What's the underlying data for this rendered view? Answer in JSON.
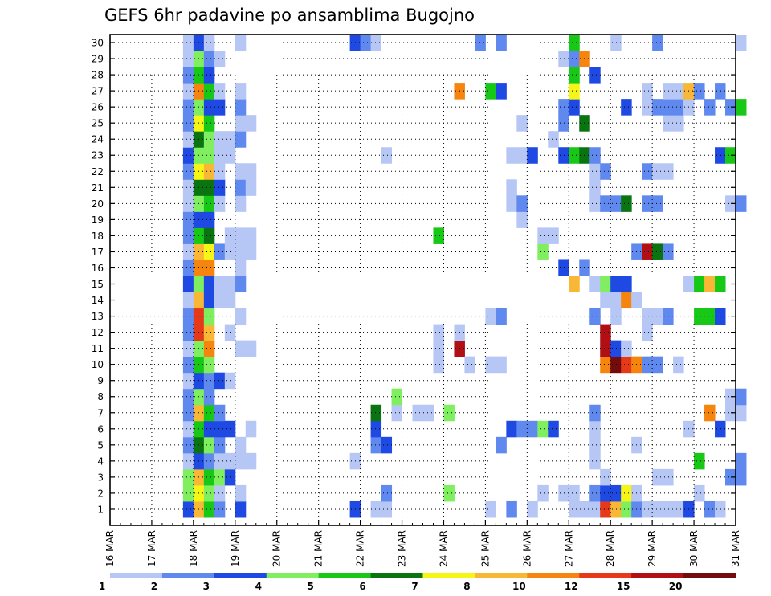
{
  "chart_data": {
    "type": "heatmap",
    "title": "GEFS 6hr padavine po ansamblima Bugojno",
    "x_ticks": [
      "16 MAR",
      "17 MAR",
      "18 MAR",
      "19 MAR",
      "20 MAR",
      "21 MAR",
      "22 MAR",
      "23 MAR",
      "24 MAR",
      "25 MAR",
      "26 MAR",
      "27 MAR",
      "28 MAR",
      "29 MAR",
      "30 MAR",
      "31 MAR"
    ],
    "x_range": [
      "16 MAR",
      "31 MAR"
    ],
    "y_ticks": [
      "1",
      "2",
      "3",
      "4",
      "5",
      "6",
      "7",
      "8",
      "9",
      "10",
      "11",
      "12",
      "13",
      "14",
      "15",
      "16",
      "17",
      "18",
      "19",
      "20",
      "21",
      "22",
      "23",
      "24",
      "25",
      "26",
      "27",
      "28",
      "29",
      "30"
    ],
    "y_range": [
      1,
      30
    ],
    "grid": true,
    "colorbar": {
      "position": "bottom",
      "labels": [
        "1",
        "2",
        "3",
        "4",
        "5",
        "6",
        "7",
        "8",
        "10",
        "12",
        "15",
        "20"
      ],
      "colors": [
        "#b7c7f5",
        "#6089f0",
        "#1f49e3",
        "#7fef60",
        "#18c817",
        "#0a7410",
        "#f5f516",
        "#f9b736",
        "#f5850f",
        "#e5391a",
        "#b10f14",
        "#740b0c"
      ]
    },
    "cells": [
      [
        7,
        0,
        3
      ],
      [
        7,
        1,
        4
      ],
      [
        7,
        2,
        4
      ],
      [
        7,
        3,
        1
      ],
      [
        7,
        4,
        2
      ],
      [
        7,
        5,
        1
      ],
      [
        7,
        6,
        2
      ],
      [
        7,
        7,
        2
      ],
      [
        7,
        8,
        1
      ],
      [
        7,
        9,
        2
      ],
      [
        7,
        10,
        1
      ],
      [
        7,
        11,
        2
      ],
      [
        7,
        12,
        2
      ],
      [
        7,
        13,
        1
      ],
      [
        7,
        14,
        3
      ],
      [
        7,
        15,
        2
      ],
      [
        7,
        16,
        1
      ],
      [
        7,
        17,
        2
      ],
      [
        7,
        18,
        2
      ],
      [
        7,
        19,
        1
      ],
      [
        7,
        20,
        1
      ],
      [
        7,
        21,
        2
      ],
      [
        7,
        22,
        3
      ],
      [
        7,
        23,
        1
      ],
      [
        7,
        24,
        2
      ],
      [
        7,
        25,
        2
      ],
      [
        7,
        26,
        1
      ],
      [
        7,
        27,
        2
      ],
      [
        7,
        28,
        1
      ],
      [
        7,
        29,
        1
      ],
      [
        8,
        0,
        8
      ],
      [
        8,
        1,
        7
      ],
      [
        8,
        2,
        8
      ],
      [
        8,
        3,
        3
      ],
      [
        8,
        4,
        6
      ],
      [
        8,
        5,
        5
      ],
      [
        8,
        6,
        8
      ],
      [
        8,
        7,
        4
      ],
      [
        8,
        8,
        3
      ],
      [
        8,
        9,
        5
      ],
      [
        8,
        10,
        4
      ],
      [
        8,
        11,
        12
      ],
      [
        8,
        12,
        12
      ],
      [
        8,
        13,
        8
      ],
      [
        8,
        14,
        4
      ],
      [
        8,
        15,
        10
      ],
      [
        8,
        16,
        8
      ],
      [
        8,
        17,
        5
      ],
      [
        8,
        18,
        3
      ],
      [
        8,
        19,
        4
      ],
      [
        8,
        20,
        6
      ],
      [
        8,
        21,
        7
      ],
      [
        8,
        22,
        4
      ],
      [
        8,
        23,
        6
      ],
      [
        8,
        24,
        7
      ],
      [
        8,
        25,
        4
      ],
      [
        8,
        26,
        10
      ],
      [
        8,
        27,
        5
      ],
      [
        8,
        28,
        4
      ],
      [
        8,
        29,
        3
      ],
      [
        9,
        0,
        5
      ],
      [
        9,
        1,
        4
      ],
      [
        9,
        2,
        5
      ],
      [
        9,
        3,
        2
      ],
      [
        9,
        4,
        4
      ],
      [
        9,
        5,
        3
      ],
      [
        9,
        6,
        5
      ],
      [
        9,
        7,
        2
      ],
      [
        9,
        8,
        2
      ],
      [
        9,
        9,
        4
      ],
      [
        9,
        10,
        10
      ],
      [
        9,
        11,
        8
      ],
      [
        9,
        12,
        4
      ],
      [
        9,
        13,
        3
      ],
      [
        9,
        14,
        3
      ],
      [
        9,
        15,
        10
      ],
      [
        9,
        16,
        7
      ],
      [
        9,
        17,
        6
      ],
      [
        9,
        18,
        3
      ],
      [
        9,
        19,
        5
      ],
      [
        9,
        20,
        6
      ],
      [
        9,
        21,
        8
      ],
      [
        9,
        22,
        4
      ],
      [
        9,
        23,
        4
      ],
      [
        9,
        24,
        5
      ],
      [
        9,
        25,
        3
      ],
      [
        9,
        26,
        5
      ],
      [
        9,
        27,
        3
      ],
      [
        9,
        28,
        2
      ],
      [
        9,
        29,
        1
      ],
      [
        10,
        0,
        2
      ],
      [
        10,
        1,
        1
      ],
      [
        10,
        2,
        4
      ],
      [
        10,
        3,
        1
      ],
      [
        10,
        4,
        2
      ],
      [
        10,
        5,
        3
      ],
      [
        10,
        6,
        2
      ],
      [
        10,
        8,
        3
      ],
      [
        10,
        13,
        1
      ],
      [
        10,
        14,
        1
      ],
      [
        10,
        16,
        2
      ],
      [
        10,
        19,
        1
      ],
      [
        10,
        20,
        3
      ],
      [
        10,
        21,
        1
      ],
      [
        10,
        22,
        1
      ],
      [
        10,
        23,
        1
      ],
      [
        10,
        25,
        3
      ],
      [
        10,
        26,
        1
      ],
      [
        10,
        28,
        1
      ],
      [
        11,
        2,
        3
      ],
      [
        11,
        3,
        1
      ],
      [
        11,
        5,
        3
      ],
      [
        11,
        8,
        1
      ],
      [
        11,
        11,
        1
      ],
      [
        11,
        13,
        1
      ],
      [
        11,
        14,
        1
      ],
      [
        11,
        16,
        1
      ],
      [
        11,
        17,
        1
      ],
      [
        11,
        22,
        1
      ],
      [
        11,
        23,
        1
      ],
      [
        12,
        0,
        3
      ],
      [
        12,
        1,
        1
      ],
      [
        12,
        3,
        1
      ],
      [
        12,
        4,
        1
      ],
      [
        12,
        10,
        1
      ],
      [
        12,
        12,
        1
      ],
      [
        12,
        14,
        2
      ],
      [
        12,
        15,
        1
      ],
      [
        12,
        16,
        1
      ],
      [
        12,
        17,
        1
      ],
      [
        12,
        19,
        1
      ],
      [
        12,
        20,
        2
      ],
      [
        12,
        21,
        1
      ],
      [
        12,
        23,
        2
      ],
      [
        12,
        24,
        1
      ],
      [
        12,
        25,
        2
      ],
      [
        12,
        26,
        1
      ],
      [
        12,
        29,
        1
      ],
      [
        13,
        3,
        1
      ],
      [
        13,
        5,
        1
      ],
      [
        13,
        10,
        1
      ],
      [
        13,
        16,
        1
      ],
      [
        13,
        17,
        1
      ],
      [
        13,
        20,
        1
      ],
      [
        13,
        21,
        1
      ],
      [
        13,
        24,
        1
      ],
      [
        23,
        0,
        3
      ],
      [
        23,
        3,
        1
      ],
      [
        23,
        29,
        3
      ],
      [
        24,
        29,
        2
      ],
      [
        25,
        0,
        1
      ],
      [
        25,
        4,
        2
      ],
      [
        25,
        5,
        3
      ],
      [
        25,
        6,
        6
      ],
      [
        25,
        29,
        1
      ],
      [
        26,
        0,
        1
      ],
      [
        26,
        1,
        2
      ],
      [
        26,
        4,
        3
      ],
      [
        26,
        22,
        1
      ],
      [
        27,
        6,
        1
      ],
      [
        27,
        7,
        4
      ],
      [
        29,
        6,
        1
      ],
      [
        30,
        6,
        1
      ],
      [
        31,
        9,
        1
      ],
      [
        31,
        10,
        1
      ],
      [
        31,
        11,
        1
      ],
      [
        31,
        17,
        5
      ],
      [
        32,
        1,
        4
      ],
      [
        32,
        6,
        4
      ],
      [
        33,
        10,
        15
      ],
      [
        33,
        11,
        1
      ],
      [
        33,
        26,
        10
      ],
      [
        34,
        9,
        1
      ],
      [
        35,
        29,
        2
      ],
      [
        36,
        0,
        1
      ],
      [
        36,
        9,
        1
      ],
      [
        36,
        12,
        1
      ],
      [
        36,
        26,
        5
      ],
      [
        37,
        4,
        2
      ],
      [
        37,
        9,
        1
      ],
      [
        37,
        12,
        2
      ],
      [
        37,
        26,
        3
      ],
      [
        37,
        29,
        2
      ],
      [
        38,
        0,
        2
      ],
      [
        38,
        5,
        3
      ],
      [
        38,
        19,
        1
      ],
      [
        38,
        20,
        1
      ],
      [
        38,
        22,
        1
      ],
      [
        39,
        5,
        2
      ],
      [
        39,
        18,
        1
      ],
      [
        39,
        19,
        2
      ],
      [
        39,
        22,
        1
      ],
      [
        39,
        24,
        1
      ],
      [
        40,
        0,
        1
      ],
      [
        40,
        5,
        2
      ],
      [
        40,
        22,
        3
      ],
      [
        41,
        1,
        1
      ],
      [
        41,
        5,
        4
      ],
      [
        41,
        16,
        4
      ],
      [
        41,
        17,
        1
      ],
      [
        42,
        5,
        3
      ],
      [
        42,
        17,
        1
      ],
      [
        42,
        23,
        1
      ],
      [
        43,
        1,
        1
      ],
      [
        43,
        15,
        3
      ],
      [
        43,
        22,
        3
      ],
      [
        43,
        24,
        2
      ],
      [
        43,
        25,
        2
      ],
      [
        43,
        28,
        1
      ],
      [
        44,
        0,
        1
      ],
      [
        44,
        1,
        1
      ],
      [
        44,
        14,
        8
      ],
      [
        44,
        22,
        5
      ],
      [
        44,
        25,
        3
      ],
      [
        44,
        26,
        7
      ],
      [
        44,
        27,
        5
      ],
      [
        44,
        28,
        2
      ],
      [
        44,
        29,
        5
      ],
      [
        45,
        0,
        1
      ],
      [
        45,
        15,
        2
      ],
      [
        45,
        22,
        6
      ],
      [
        45,
        24,
        6
      ],
      [
        45,
        28,
        10
      ],
      [
        46,
        0,
        1
      ],
      [
        46,
        1,
        2
      ],
      [
        46,
        3,
        1
      ],
      [
        46,
        4,
        1
      ],
      [
        46,
        5,
        1
      ],
      [
        46,
        6,
        2
      ],
      [
        46,
        12,
        2
      ],
      [
        46,
        14,
        1
      ],
      [
        46,
        19,
        1
      ],
      [
        46,
        20,
        1
      ],
      [
        46,
        21,
        1
      ],
      [
        46,
        22,
        2
      ],
      [
        46,
        27,
        3
      ],
      [
        47,
        0,
        12
      ],
      [
        47,
        1,
        3
      ],
      [
        47,
        2,
        1
      ],
      [
        47,
        9,
        10
      ],
      [
        47,
        10,
        15
      ],
      [
        47,
        11,
        15
      ],
      [
        47,
        13,
        1
      ],
      [
        47,
        14,
        4
      ],
      [
        47,
        19,
        2
      ],
      [
        47,
        21,
        2
      ],
      [
        48,
        0,
        8
      ],
      [
        48,
        1,
        3
      ],
      [
        48,
        9,
        20
      ],
      [
        48,
        10,
        3
      ],
      [
        48,
        12,
        1
      ],
      [
        48,
        13,
        1
      ],
      [
        48,
        14,
        3
      ],
      [
        48,
        19,
        2
      ],
      [
        48,
        29,
        1
      ],
      [
        49,
        0,
        4
      ],
      [
        49,
        1,
        7
      ],
      [
        49,
        9,
        12
      ],
      [
        49,
        10,
        1
      ],
      [
        49,
        13,
        10
      ],
      [
        49,
        14,
        3
      ],
      [
        49,
        19,
        6
      ],
      [
        49,
        25,
        3
      ],
      [
        50,
        0,
        2
      ],
      [
        50,
        1,
        1
      ],
      [
        50,
        4,
        1
      ],
      [
        50,
        9,
        10
      ],
      [
        50,
        13,
        1
      ],
      [
        50,
        16,
        2
      ],
      [
        51,
        0,
        1
      ],
      [
        51,
        9,
        2
      ],
      [
        51,
        11,
        1
      ],
      [
        51,
        12,
        1
      ],
      [
        51,
        16,
        15
      ],
      [
        51,
        19,
        2
      ],
      [
        51,
        21,
        2
      ],
      [
        51,
        25,
        1
      ],
      [
        51,
        26,
        1
      ],
      [
        52,
        0,
        1
      ],
      [
        52,
        2,
        1
      ],
      [
        52,
        9,
        2
      ],
      [
        52,
        12,
        1
      ],
      [
        52,
        16,
        6
      ],
      [
        52,
        19,
        2
      ],
      [
        52,
        21,
        1
      ],
      [
        52,
        25,
        2
      ],
      [
        52,
        29,
        2
      ],
      [
        53,
        0,
        1
      ],
      [
        53,
        2,
        1
      ],
      [
        53,
        12,
        2
      ],
      [
        53,
        16,
        2
      ],
      [
        53,
        21,
        1
      ],
      [
        53,
        24,
        1
      ],
      [
        53,
        25,
        2
      ],
      [
        53,
        26,
        1
      ],
      [
        54,
        0,
        1
      ],
      [
        54,
        9,
        1
      ],
      [
        54,
        24,
        1
      ],
      [
        54,
        25,
        2
      ],
      [
        54,
        26,
        1
      ],
      [
        55,
        0,
        3
      ],
      [
        55,
        5,
        1
      ],
      [
        55,
        14,
        1
      ],
      [
        55,
        25,
        1
      ],
      [
        55,
        26,
        8
      ],
      [
        56,
        1,
        1
      ],
      [
        56,
        3,
        5
      ],
      [
        56,
        12,
        5
      ],
      [
        56,
        14,
        5
      ],
      [
        56,
        26,
        2
      ],
      [
        57,
        0,
        2
      ],
      [
        57,
        6,
        10
      ],
      [
        57,
        12,
        5
      ],
      [
        57,
        14,
        8
      ],
      [
        57,
        25,
        2
      ],
      [
        58,
        0,
        1
      ],
      [
        58,
        5,
        3
      ],
      [
        58,
        12,
        3
      ],
      [
        58,
        14,
        5
      ],
      [
        58,
        22,
        3
      ],
      [
        58,
        26,
        2
      ],
      [
        59,
        2,
        2
      ],
      [
        59,
        7,
        1
      ],
      [
        59,
        6,
        1
      ],
      [
        59,
        19,
        1
      ],
      [
        59,
        22,
        5
      ],
      [
        59,
        25,
        2
      ],
      [
        60,
        2,
        2
      ],
      [
        60,
        3,
        2
      ],
      [
        60,
        6,
        1
      ],
      [
        60,
        7,
        2
      ],
      [
        60,
        19,
        2
      ],
      [
        60,
        25,
        5
      ],
      [
        60,
        29,
        1
      ]
    ]
  }
}
